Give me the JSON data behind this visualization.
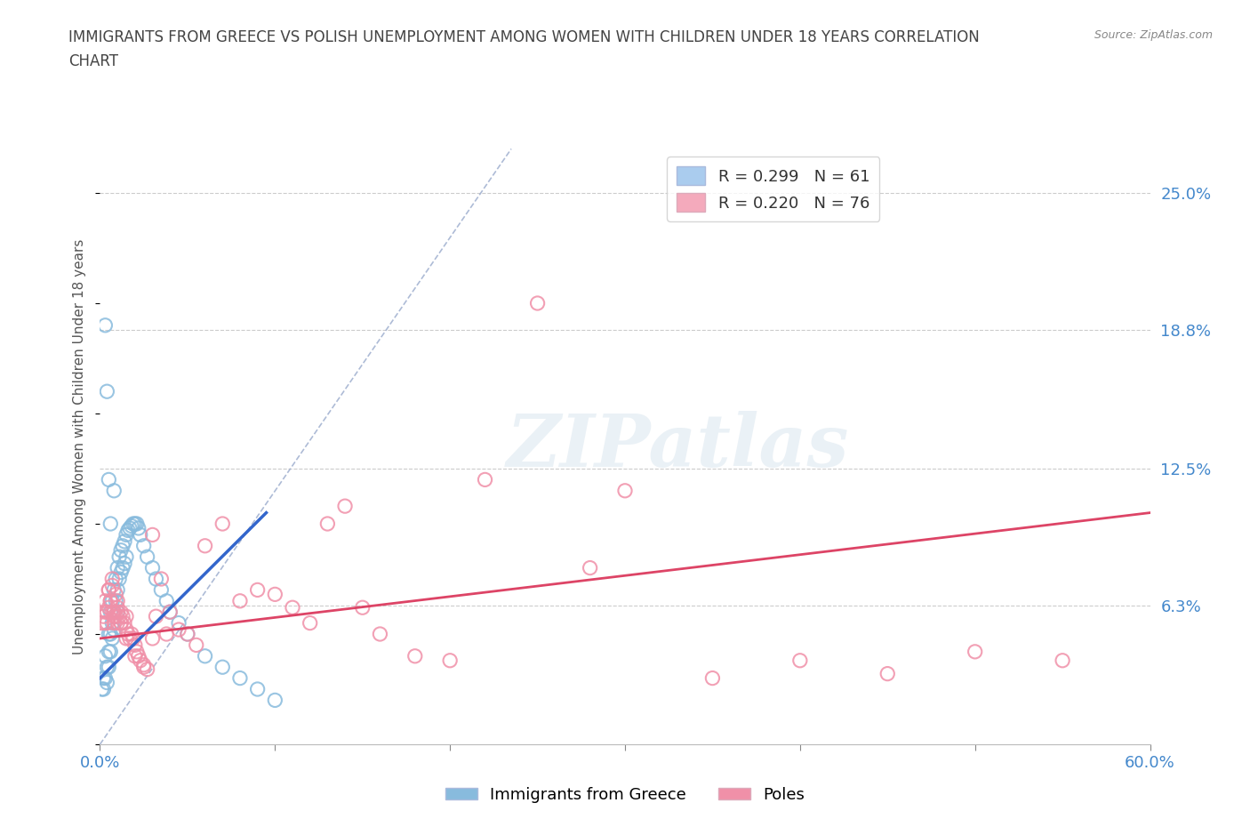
{
  "title_line1": "IMMIGRANTS FROM GREECE VS POLISH UNEMPLOYMENT AMONG WOMEN WITH CHILDREN UNDER 18 YEARS CORRELATION",
  "title_line2": "CHART",
  "source": "Source: ZipAtlas.com",
  "ylabel": "Unemployment Among Women with Children Under 18 years",
  "xlim": [
    0.0,
    0.6
  ],
  "ylim": [
    0.0,
    0.27
  ],
  "xticks": [
    0.0,
    0.1,
    0.2,
    0.3,
    0.4,
    0.5,
    0.6
  ],
  "xticklabels": [
    "0.0%",
    "",
    "",
    "",
    "",
    "",
    "60.0%"
  ],
  "yticks_right": [
    0.0,
    0.063,
    0.125,
    0.188,
    0.25
  ],
  "yticklabels_right": [
    "",
    "6.3%",
    "12.5%",
    "18.8%",
    "25.0%"
  ],
  "grid_color": "#cccccc",
  "background_color": "#ffffff",
  "legend_entries": [
    {
      "label": "R = 0.299   N = 61",
      "color": "#aaccee"
    },
    {
      "label": "R = 0.220   N = 76",
      "color": "#f4aabc"
    }
  ],
  "series1_color": "#88bbdd",
  "series2_color": "#f090a8",
  "series1_label": "Immigrants from Greece",
  "series2_label": "Poles",
  "trendline1_color": "#3366cc",
  "trendline2_color": "#dd4466",
  "ref_line_color": "#99aacc",
  "title_color": "#444444",
  "right_label_color": "#4488cc",
  "bottom_label_color": "#4488cc",
  "series1_x": [
    0.001,
    0.002,
    0.002,
    0.003,
    0.003,
    0.004,
    0.004,
    0.005,
    0.005,
    0.005,
    0.006,
    0.006,
    0.006,
    0.007,
    0.007,
    0.007,
    0.008,
    0.008,
    0.008,
    0.009,
    0.009,
    0.01,
    0.01,
    0.01,
    0.011,
    0.011,
    0.012,
    0.012,
    0.013,
    0.013,
    0.014,
    0.014,
    0.015,
    0.015,
    0.016,
    0.017,
    0.018,
    0.019,
    0.02,
    0.021,
    0.022,
    0.023,
    0.025,
    0.027,
    0.03,
    0.032,
    0.035,
    0.038,
    0.04,
    0.045,
    0.05,
    0.06,
    0.07,
    0.08,
    0.09,
    0.1,
    0.003,
    0.004,
    0.005,
    0.006,
    0.008
  ],
  "series1_y": [
    0.025,
    0.03,
    0.025,
    0.04,
    0.03,
    0.035,
    0.028,
    0.05,
    0.042,
    0.035,
    0.06,
    0.05,
    0.042,
    0.065,
    0.055,
    0.048,
    0.07,
    0.06,
    0.052,
    0.075,
    0.065,
    0.08,
    0.07,
    0.06,
    0.085,
    0.075,
    0.088,
    0.078,
    0.09,
    0.08,
    0.092,
    0.082,
    0.095,
    0.085,
    0.097,
    0.098,
    0.099,
    0.1,
    0.1,
    0.1,
    0.098,
    0.095,
    0.09,
    0.085,
    0.08,
    0.075,
    0.07,
    0.065,
    0.06,
    0.055,
    0.05,
    0.04,
    0.035,
    0.03,
    0.025,
    0.02,
    0.19,
    0.16,
    0.12,
    0.1,
    0.115
  ],
  "series2_x": [
    0.001,
    0.002,
    0.003,
    0.003,
    0.004,
    0.005,
    0.005,
    0.006,
    0.007,
    0.007,
    0.008,
    0.008,
    0.009,
    0.009,
    0.01,
    0.01,
    0.01,
    0.011,
    0.012,
    0.012,
    0.013,
    0.014,
    0.015,
    0.015,
    0.016,
    0.017,
    0.018,
    0.019,
    0.02,
    0.021,
    0.022,
    0.023,
    0.025,
    0.027,
    0.03,
    0.032,
    0.035,
    0.038,
    0.04,
    0.045,
    0.05,
    0.055,
    0.06,
    0.07,
    0.08,
    0.09,
    0.1,
    0.11,
    0.12,
    0.13,
    0.14,
    0.15,
    0.16,
    0.18,
    0.2,
    0.22,
    0.25,
    0.28,
    0.3,
    0.35,
    0.4,
    0.45,
    0.5,
    0.55,
    0.003,
    0.004,
    0.005,
    0.006,
    0.007,
    0.008,
    0.01,
    0.012,
    0.015,
    0.02,
    0.025,
    0.03
  ],
  "series2_y": [
    0.055,
    0.058,
    0.055,
    0.065,
    0.06,
    0.062,
    0.07,
    0.065,
    0.06,
    0.072,
    0.06,
    0.055,
    0.058,
    0.068,
    0.055,
    0.06,
    0.065,
    0.058,
    0.055,
    0.06,
    0.058,
    0.055,
    0.052,
    0.058,
    0.05,
    0.048,
    0.05,
    0.048,
    0.045,
    0.042,
    0.04,
    0.038,
    0.036,
    0.034,
    0.095,
    0.058,
    0.075,
    0.05,
    0.06,
    0.052,
    0.05,
    0.045,
    0.09,
    0.1,
    0.065,
    0.07,
    0.068,
    0.062,
    0.055,
    0.1,
    0.108,
    0.062,
    0.05,
    0.04,
    0.038,
    0.12,
    0.2,
    0.08,
    0.115,
    0.03,
    0.038,
    0.032,
    0.042,
    0.038,
    0.06,
    0.055,
    0.07,
    0.065,
    0.075,
    0.058,
    0.062,
    0.055,
    0.048,
    0.04,
    0.035,
    0.048
  ],
  "trendline1_x0": 0.0,
  "trendline1_x1": 0.095,
  "trendline1_y0": 0.03,
  "trendline1_y1": 0.105,
  "trendline2_x0": 0.0,
  "trendline2_x1": 0.6,
  "trendline2_y0": 0.048,
  "trendline2_y1": 0.105,
  "refline_x0": 0.0,
  "refline_y0": 0.0,
  "refline_x1": 0.235,
  "refline_y1": 0.27
}
